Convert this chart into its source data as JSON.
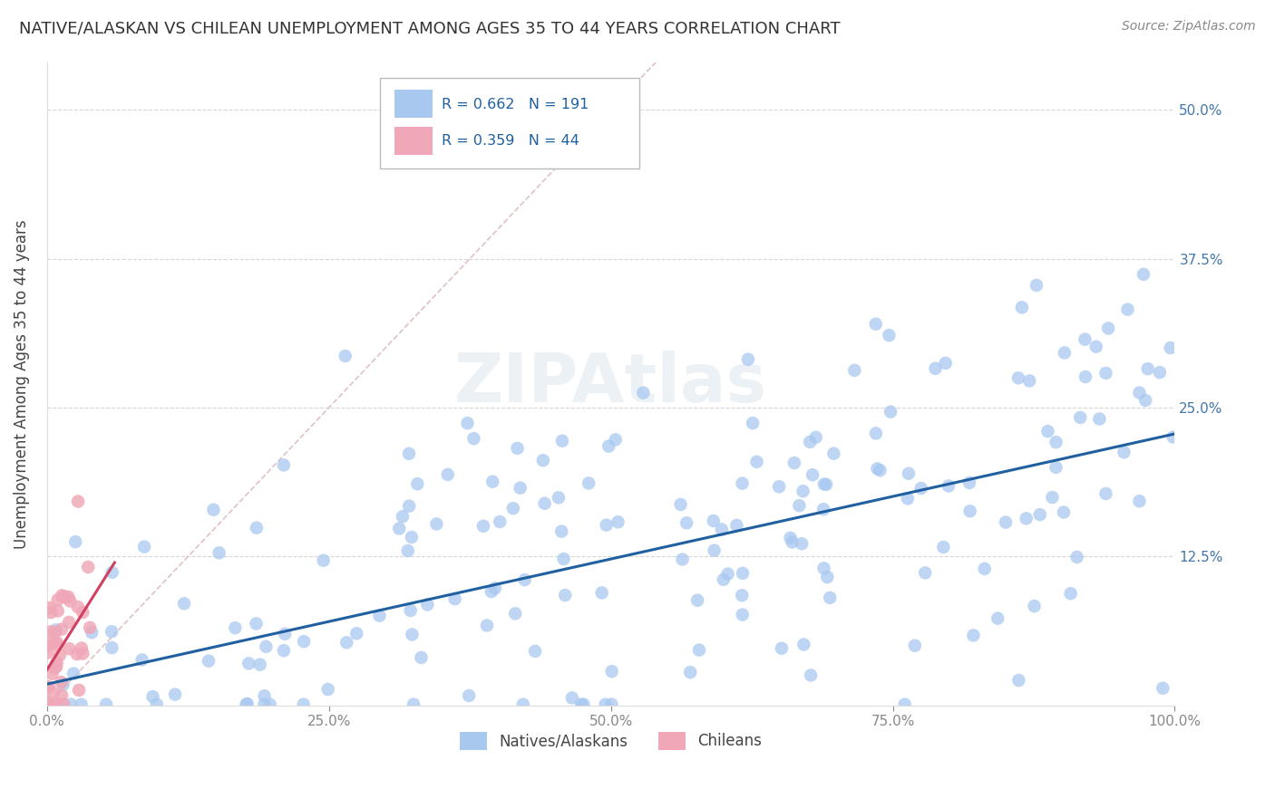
{
  "title": "NATIVE/ALASKAN VS CHILEAN UNEMPLOYMENT AMONG AGES 35 TO 44 YEARS CORRELATION CHART",
  "source_text": "Source: ZipAtlas.com",
  "ylabel": "Unemployment Among Ages 35 to 44 years",
  "xlim": [
    0,
    1.0
  ],
  "ylim": [
    0,
    0.54
  ],
  "blue_color": "#a8c8f0",
  "pink_color": "#f0a8b8",
  "blue_line_color": "#2060a0",
  "pink_line_color": "#d04060",
  "diag_line_color": "#ddbbbb",
  "R_blue": 0.662,
  "N_blue": 191,
  "R_pink": 0.359,
  "N_pink": 44,
  "legend_label_blue": "Natives/Alaskans",
  "legend_label_pink": "Chileans",
  "background_color": "#ffffff",
  "grid_color": "#cccccc",
  "title_fontsize": 13,
  "axis_label_fontsize": 12,
  "tick_fontsize": 11,
  "blue_seed": 12345,
  "pink_seed": 54321
}
